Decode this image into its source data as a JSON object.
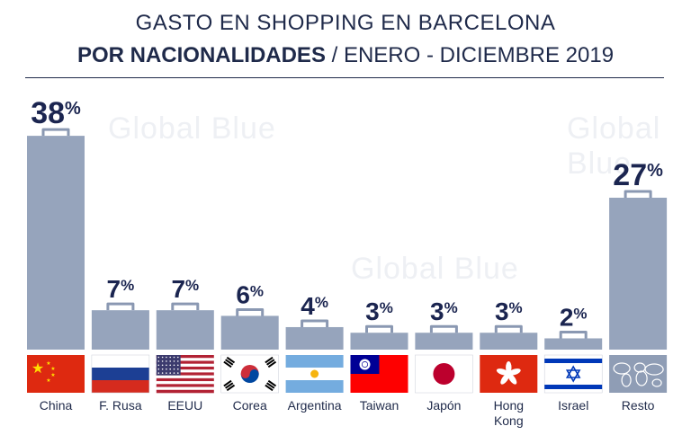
{
  "header": {
    "title_line1": "GASTO EN SHOPPING EN BARCELONA",
    "title_line2_bold": "POR NACIONALIDADES",
    "title_line2_rest": " / ENERO - DICIEMBRE 2019"
  },
  "watermark": {
    "text": "Global Blue"
  },
  "colors": {
    "bar": "#96a4bc",
    "handle": "#8a98b2",
    "text": "#1b2550"
  },
  "chart_data": {
    "type": "bar",
    "title": "GASTO EN SHOPPING EN BARCELONA POR NACIONALIDADES / ENERO - DICIEMBRE 2019",
    "categories": [
      "China",
      "F. Rusa",
      "EEUU",
      "Corea",
      "Argentina",
      "Taiwan",
      "Japón",
      "Hong Kong",
      "Israel",
      "Resto"
    ],
    "values": [
      38,
      7,
      7,
      6,
      4,
      3,
      3,
      3,
      2,
      27
    ],
    "value_labels": [
      "38%",
      "7%",
      "7%",
      "6%",
      "4%",
      "3%",
      "3%",
      "3%",
      "2%",
      "27%"
    ],
    "flags": [
      "china-flag-icon",
      "russia-flag-icon",
      "usa-flag-icon",
      "korea-flag-icon",
      "argentina-flag-icon",
      "taiwan-flag-icon",
      "japan-flag-icon",
      "hong-kong-flag-icon",
      "israel-flag-icon",
      "world-map-icon"
    ],
    "unit": "%",
    "ylim": [
      0,
      40
    ],
    "grid": false
  }
}
